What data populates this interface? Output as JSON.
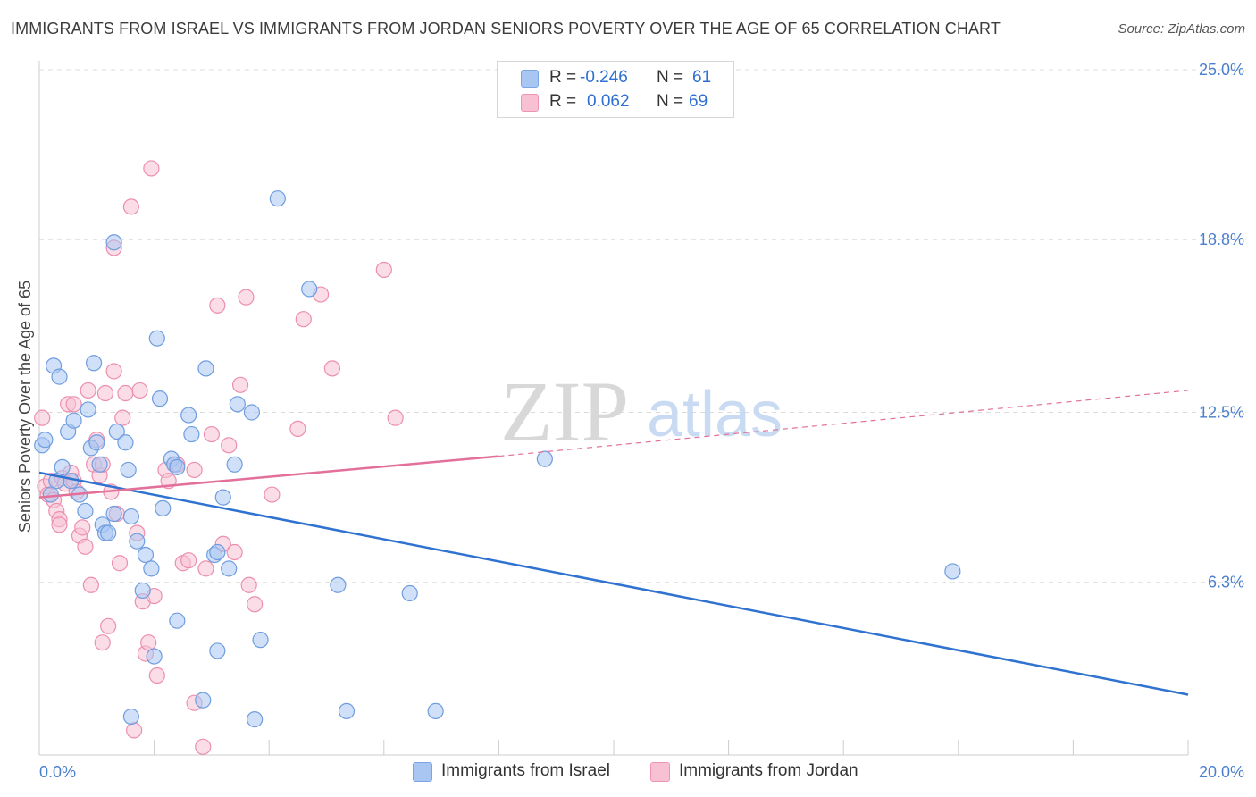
{
  "title": "IMMIGRANTS FROM ISRAEL VS IMMIGRANTS FROM JORDAN SENIORS POVERTY OVER THE AGE OF 65 CORRELATION CHART",
  "source": "Source: ZipAtlas.com",
  "watermark": {
    "zip": "ZIP",
    "atlas": "atlas"
  },
  "legend": {
    "rows": [
      {
        "r_label": "R =",
        "r_value": "-0.246",
        "n_label": "N =",
        "n_value": "61",
        "color": "#a9c6f2",
        "border": "#7aa6e6"
      },
      {
        "r_label": "R =",
        "r_value": "0.062",
        "n_label": "N =",
        "n_value": "69",
        "color": "#f8c1d3",
        "border": "#ee93b2"
      }
    ]
  },
  "bottom_legend": {
    "israel": "Immigrants from Israel",
    "jordan": "Immigrants from Jordan"
  },
  "chart_data": {
    "type": "scatter",
    "title": "IMMIGRANTS FROM ISRAEL VS IMMIGRANTS FROM JORDAN SENIORS POVERTY OVER THE AGE OF 65 CORRELATION CHART",
    "xlabel": "",
    "ylabel": "Seniors Poverty Over the Age of 65",
    "xlim": [
      0,
      20
    ],
    "ylim": [
      0,
      25
    ],
    "x_tick_labels": [
      {
        "value": 0,
        "label": "0.0%"
      },
      {
        "value": 20,
        "label": "20.0%"
      }
    ],
    "y_tick_labels": [
      {
        "value": 6.3,
        "label": "6.3%"
      },
      {
        "value": 12.5,
        "label": "12.5%"
      },
      {
        "value": 18.8,
        "label": "18.8%"
      },
      {
        "value": 25.0,
        "label": "25.0%"
      }
    ],
    "series": [
      {
        "name": "Immigrants from Israel",
        "color": "#a9c6f2",
        "stroke": "#6f9de0",
        "trend": {
          "x": [
            0,
            20
          ],
          "y": [
            10.3,
            2.2
          ],
          "color": "#2f72d0"
        },
        "points": [
          [
            0.05,
            11.3
          ],
          [
            0.1,
            11.5
          ],
          [
            0.2,
            9.5
          ],
          [
            0.25,
            14.2
          ],
          [
            0.35,
            13.8
          ],
          [
            0.4,
            10.5
          ],
          [
            0.5,
            11.8
          ],
          [
            0.55,
            10.0
          ],
          [
            0.6,
            12.2
          ],
          [
            0.7,
            9.5
          ],
          [
            0.8,
            8.9
          ],
          [
            0.85,
            12.6
          ],
          [
            0.9,
            11.2
          ],
          [
            0.95,
            14.3
          ],
          [
            1.0,
            11.4
          ],
          [
            1.05,
            10.6
          ],
          [
            1.1,
            8.4
          ],
          [
            1.15,
            8.1
          ],
          [
            1.3,
            18.7
          ],
          [
            1.3,
            8.8
          ],
          [
            1.35,
            11.8
          ],
          [
            1.5,
            11.4
          ],
          [
            1.55,
            10.4
          ],
          [
            1.6,
            8.7
          ],
          [
            1.7,
            7.8
          ],
          [
            1.8,
            6.0
          ],
          [
            1.85,
            7.3
          ],
          [
            1.95,
            6.8
          ],
          [
            2.0,
            3.6
          ],
          [
            2.05,
            15.2
          ],
          [
            2.1,
            13.0
          ],
          [
            2.15,
            9.0
          ],
          [
            2.3,
            10.8
          ],
          [
            2.35,
            10.6
          ],
          [
            2.4,
            4.9
          ],
          [
            2.6,
            12.4
          ],
          [
            2.65,
            11.7
          ],
          [
            2.85,
            2.0
          ],
          [
            2.9,
            14.1
          ],
          [
            3.05,
            7.3
          ],
          [
            3.1,
            7.4
          ],
          [
            3.1,
            3.8
          ],
          [
            3.2,
            9.4
          ],
          [
            3.3,
            6.8
          ],
          [
            3.4,
            10.6
          ],
          [
            3.45,
            12.8
          ],
          [
            3.7,
            12.5
          ],
          [
            3.75,
            1.3
          ],
          [
            3.85,
            4.2
          ],
          [
            4.15,
            20.3
          ],
          [
            4.7,
            17.0
          ],
          [
            5.2,
            6.2
          ],
          [
            5.35,
            1.6
          ],
          [
            6.45,
            5.9
          ],
          [
            6.9,
            1.6
          ],
          [
            8.8,
            10.8
          ],
          [
            15.9,
            6.7
          ],
          [
            1.6,
            1.4
          ],
          [
            0.3,
            10.0
          ],
          [
            1.2,
            8.1
          ],
          [
            2.4,
            10.5
          ]
        ]
      },
      {
        "name": "Immigrants from Jordan",
        "color": "#f8c1d3",
        "stroke": "#ec8fae",
        "trend": {
          "x": [
            0,
            8
          ],
          "y": [
            9.4,
            10.9
          ],
          "x_dashed": [
            8,
            20
          ],
          "y_dashed": [
            10.9,
            13.3
          ],
          "color": "#e3709a"
        },
        "points": [
          [
            0.05,
            12.3
          ],
          [
            0.1,
            9.8
          ],
          [
            0.15,
            9.5
          ],
          [
            0.2,
            10.0
          ],
          [
            0.25,
            9.3
          ],
          [
            0.3,
            8.9
          ],
          [
            0.35,
            8.6
          ],
          [
            0.35,
            8.4
          ],
          [
            0.4,
            10.1
          ],
          [
            0.45,
            9.9
          ],
          [
            0.5,
            12.8
          ],
          [
            0.55,
            10.3
          ],
          [
            0.6,
            10.0
          ],
          [
            0.65,
            9.6
          ],
          [
            0.7,
            8.0
          ],
          [
            0.75,
            8.3
          ],
          [
            0.8,
            7.6
          ],
          [
            0.85,
            13.3
          ],
          [
            0.9,
            6.2
          ],
          [
            0.95,
            10.6
          ],
          [
            1.0,
            11.5
          ],
          [
            1.05,
            10.2
          ],
          [
            1.1,
            4.1
          ],
          [
            1.15,
            13.2
          ],
          [
            1.2,
            4.7
          ],
          [
            1.25,
            9.6
          ],
          [
            1.3,
            14.0
          ],
          [
            1.35,
            8.8
          ],
          [
            1.4,
            7.0
          ],
          [
            1.45,
            12.3
          ],
          [
            1.5,
            13.2
          ],
          [
            1.6,
            20.0
          ],
          [
            1.7,
            8.1
          ],
          [
            1.75,
            13.3
          ],
          [
            1.8,
            5.6
          ],
          [
            1.85,
            3.7
          ],
          [
            1.9,
            4.1
          ],
          [
            1.95,
            21.4
          ],
          [
            2.0,
            5.8
          ],
          [
            2.05,
            2.9
          ],
          [
            2.2,
            10.4
          ],
          [
            2.25,
            10.0
          ],
          [
            2.4,
            10.6
          ],
          [
            2.5,
            7.0
          ],
          [
            2.6,
            7.1
          ],
          [
            2.7,
            10.4
          ],
          [
            2.85,
            0.3
          ],
          [
            2.9,
            6.8
          ],
          [
            3.0,
            11.7
          ],
          [
            3.1,
            16.4
          ],
          [
            3.2,
            7.7
          ],
          [
            3.3,
            11.3
          ],
          [
            3.4,
            7.4
          ],
          [
            3.5,
            13.5
          ],
          [
            3.6,
            16.7
          ],
          [
            3.65,
            6.2
          ],
          [
            3.75,
            5.5
          ],
          [
            4.05,
            9.5
          ],
          [
            4.5,
            11.9
          ],
          [
            4.6,
            15.9
          ],
          [
            4.9,
            16.8
          ],
          [
            5.1,
            14.1
          ],
          [
            6.0,
            17.7
          ],
          [
            6.2,
            12.3
          ],
          [
            1.3,
            18.5
          ],
          [
            1.65,
            0.9
          ],
          [
            2.7,
            1.9
          ],
          [
            0.6,
            12.8
          ],
          [
            1.1,
            10.6
          ]
        ]
      }
    ]
  }
}
